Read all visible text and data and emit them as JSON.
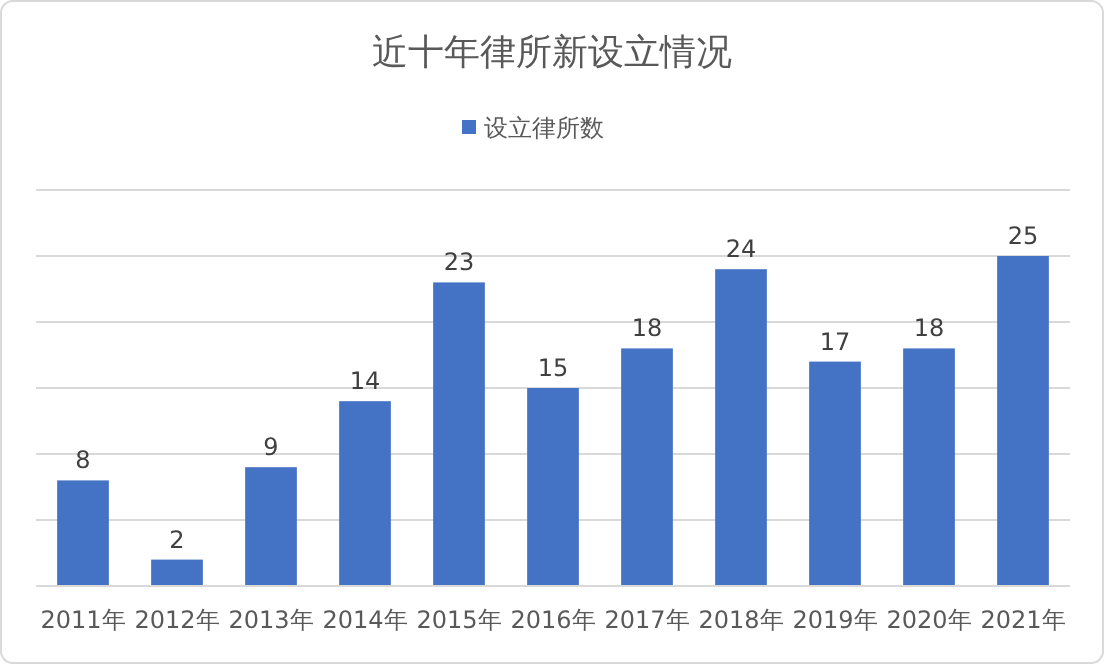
{
  "chart_data": {
    "type": "bar",
    "title": "近十年律所新设立情况",
    "categories": [
      "2011年",
      "2012年",
      "2013年",
      "2014年",
      "2015年",
      "2016年",
      "2017年",
      "2018年",
      "2019年",
      "2020年",
      "2021年"
    ],
    "series": [
      {
        "name": "设立律所数",
        "color": "#4472c4",
        "values": [
          8,
          2,
          9,
          14,
          23,
          15,
          18,
          24,
          17,
          18,
          25
        ]
      }
    ],
    "ylim": [
      0,
      30
    ],
    "yticks": [
      {
        "value": 0,
        "label": null
      },
      {
        "value": 5,
        "label": null
      },
      {
        "value": 10,
        "label": null
      },
      {
        "value": 15,
        "label": null
      },
      {
        "value": 20,
        "label": null
      },
      {
        "value": 25,
        "label": null
      },
      {
        "value": 30,
        "label": null
      }
    ],
    "tick_labels": "x",
    "grid": "y",
    "legend": "top",
    "data_labels": true
  }
}
